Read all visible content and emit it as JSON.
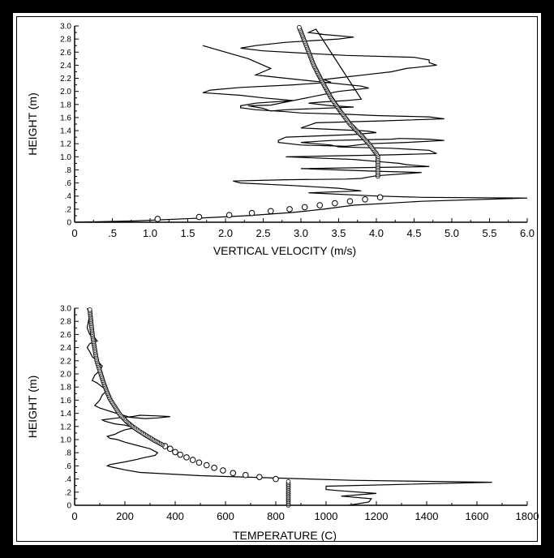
{
  "chart_data": [
    {
      "type": "line",
      "xlabel": "VERTICAL VELOCITY (m/s)",
      "ylabel": "HEIGHT (m)",
      "xlim": [
        0,
        6.0
      ],
      "ylim": [
        0,
        3.0
      ],
      "x_ticks": [
        "0",
        ".5",
        "1.0",
        "1.5",
        "2.0",
        "2.5",
        "3.0",
        "3.5",
        "4.0",
        "4.5",
        "5.0",
        "5.5",
        "6.0"
      ],
      "x_tick_values": [
        0,
        0.5,
        1.0,
        1.5,
        2.0,
        2.5,
        3.0,
        3.5,
        4.0,
        4.5,
        5.0,
        5.5,
        6.0
      ],
      "y_ticks": [
        "0",
        ".2",
        ".4",
        ".6",
        ".8",
        "1.0",
        "1.2",
        "1.4",
        "1.6",
        "1.8",
        "2.0",
        "2.2",
        "2.4",
        "2.6",
        "2.8",
        "3.0"
      ],
      "y_tick_values": [
        0,
        0.2,
        0.4,
        0.6,
        0.8,
        1.0,
        1.2,
        1.4,
        1.6,
        1.8,
        2.0,
        2.2,
        2.4,
        2.6,
        2.8,
        3.0
      ],
      "series": [
        {
          "style": "line",
          "x": [
            0.0,
            0.8,
            1.6,
            2.3,
            2.9,
            3.3,
            3.7,
            4.6,
            6.0,
            4.6,
            4.0,
            3.1,
            3.8,
            3.5,
            2.9,
            2.2,
            2.1,
            2.8,
            3.6,
            3.8,
            3.9,
            4.0,
            4.6,
            4.0,
            3.0,
            4.7,
            4.4,
            4.3,
            4.1,
            3.7,
            2.8,
            4.2,
            4.8,
            4.7,
            4.2,
            3.5,
            3.4,
            3.2,
            3.0,
            3.4,
            3.8,
            4.2,
            4.3,
            4.7,
            4.9,
            4.4,
            3.9,
            3.6,
            3.0,
            2.7,
            2.7,
            2.8,
            3.7,
            4.0,
            3.9,
            3.8,
            3.4,
            3.0,
            3.1,
            3.2,
            4.1,
            4.9,
            4.7,
            4.0,
            3.6,
            3.0,
            2.8,
            2.4,
            2.2,
            2.2,
            2.4,
            2.9,
            2.5,
            2.2,
            1.7,
            1.8,
            2.2,
            2.9,
            3.4,
            3.3,
            3.6,
            3.9,
            4.2,
            4.4,
            4.8,
            4.7,
            4.7,
            4.5,
            3.6,
            3.1,
            2.5,
            2.2,
            2.4,
            2.8,
            3.5,
            3.7,
            3.3,
            3.1,
            3.2,
            3.8,
            3.6,
            3.3,
            3.1,
            3.4,
            3.7,
            2.8,
            2.6,
            2.5,
            2.3,
            2.6,
            3.5,
            3.9,
            3.8,
            2.8,
            2.4,
            2.6,
            2.3,
            1.7
          ],
          "y": [
            0.0,
            0.02,
            0.06,
            0.1,
            0.15,
            0.2,
            0.26,
            0.32,
            0.37,
            0.38,
            0.4,
            0.45,
            0.48,
            0.52,
            0.56,
            0.6,
            0.63,
            0.65,
            0.66,
            0.67,
            0.69,
            0.71,
            0.76,
            0.78,
            0.82,
            0.85,
            0.88,
            0.9,
            0.92,
            0.96,
            1.0,
            1.03,
            1.05,
            1.1,
            1.13,
            1.15,
            1.18,
            1.2,
            1.22,
            1.25,
            1.26,
            1.27,
            1.28,
            1.27,
            1.25,
            1.22,
            1.2,
            1.16,
            1.18,
            1.22,
            1.25,
            1.3,
            1.34,
            1.37,
            1.39,
            1.4,
            1.42,
            1.44,
            1.48,
            1.52,
            1.55,
            1.58,
            1.61,
            1.63,
            1.65,
            1.67,
            1.69,
            1.72,
            1.75,
            1.78,
            1.82,
            1.86,
            1.9,
            1.94,
            1.98,
            2.02,
            2.06,
            2.1,
            2.14,
            2.18,
            2.22,
            2.26,
            2.3,
            2.35,
            2.4,
            2.44,
            2.48,
            2.52,
            2.55,
            2.58,
            2.62,
            2.66,
            2.7,
            2.75,
            2.8,
            2.83,
            2.87,
            2.9,
            2.95,
            1.88,
            1.86,
            1.84,
            1.82,
            1.78,
            1.76,
            1.72,
            1.7,
            1.74,
            1.78,
            1.79,
            2.0,
            2.05,
            2.08,
            2.2,
            2.25,
            2.35,
            2.5,
            2.7
          ],
          "raw_path": true
        },
        {
          "style": "circles",
          "x": [
            1.1,
            1.65,
            2.05,
            2.35,
            2.6,
            2.85,
            3.05,
            3.25,
            3.45,
            3.65,
            3.85,
            4.05
          ],
          "y": [
            0.05,
            0.08,
            0.11,
            0.14,
            0.17,
            0.2,
            0.23,
            0.26,
            0.29,
            0.32,
            0.35,
            0.38
          ]
        },
        {
          "style": "dense-circles",
          "x": [
            4.02,
            4.02,
            4.02,
            4.02,
            4.02,
            4.02,
            4.02,
            4.0,
            3.9,
            3.78,
            3.65,
            3.52,
            3.4,
            3.28,
            3.17,
            3.07,
            2.97
          ],
          "y": [
            0.7,
            0.75,
            0.8,
            0.85,
            0.9,
            0.95,
            1.0,
            1.05,
            1.2,
            1.35,
            1.5,
            1.7,
            1.9,
            2.15,
            2.4,
            2.7,
            3.0
          ]
        }
      ]
    },
    {
      "type": "line",
      "xlabel": "TEMPERATURE (C)",
      "ylabel": "HEIGHT (m)",
      "xlim": [
        0,
        1800
      ],
      "ylim": [
        0,
        3.0
      ],
      "x_ticks": [
        "0",
        "200",
        "400",
        "600",
        "800",
        "1000",
        "1200",
        "1400",
        "1600",
        "1800"
      ],
      "x_tick_values": [
        0,
        200,
        400,
        600,
        800,
        1000,
        1200,
        1400,
        1600,
        1800
      ],
      "y_ticks": [
        "0",
        ".2",
        ".4",
        ".6",
        ".8",
        "1.0",
        "1.2",
        "1.4",
        "1.6",
        "1.8",
        "2.0",
        "2.2",
        "2.4",
        "2.6",
        "2.8",
        "3.0"
      ],
      "y_tick_values": [
        0,
        0.2,
        0.4,
        0.6,
        0.8,
        1.0,
        1.2,
        1.4,
        1.6,
        1.8,
        2.0,
        2.2,
        2.4,
        2.6,
        2.8,
        3.0
      ],
      "series": [
        {
          "style": "line",
          "x": [
            1090,
            1170,
            1180,
            1060,
            1200,
            1060,
            1000,
            1000,
            1660,
            1100,
            500,
            260,
            200,
            150,
            130,
            140,
            200,
            250,
            270,
            320,
            330,
            300,
            280,
            240,
            200,
            170,
            140,
            130,
            160,
            180,
            200,
            240,
            200,
            160,
            120,
            110,
            170,
            230,
            260,
            330,
            380,
            330,
            280,
            220,
            150,
            100,
            80,
            100,
            110,
            130,
            110,
            90,
            70,
            80,
            100,
            110,
            90,
            70,
            60,
            50,
            60,
            90,
            80,
            60,
            50,
            55,
            60,
            50
          ],
          "y": [
            0.0,
            0.05,
            0.1,
            0.14,
            0.18,
            0.22,
            0.24,
            0.29,
            0.35,
            0.38,
            0.45,
            0.5,
            0.54,
            0.58,
            0.6,
            0.62,
            0.66,
            0.7,
            0.72,
            0.76,
            0.8,
            0.86,
            0.88,
            0.92,
            0.96,
            1.0,
            1.02,
            1.05,
            1.08,
            1.12,
            1.15,
            1.18,
            1.22,
            1.24,
            1.28,
            1.3,
            1.33,
            1.35,
            1.37,
            1.36,
            1.35,
            1.33,
            1.32,
            1.34,
            1.42,
            1.48,
            1.52,
            1.6,
            1.68,
            1.75,
            1.8,
            1.86,
            1.9,
            1.98,
            2.05,
            2.12,
            2.2,
            2.26,
            2.34,
            2.4,
            2.46,
            2.5,
            2.55,
            2.6,
            2.7,
            2.8,
            2.9,
            3.0
          ],
          "raw_path": true
        },
        {
          "style": "circles",
          "x": [
            800,
            735,
            680,
            630,
            590,
            555,
            525,
            495,
            470,
            445,
            420,
            400,
            380,
            360
          ],
          "y": [
            0.4,
            0.43,
            0.46,
            0.49,
            0.53,
            0.57,
            0.61,
            0.65,
            0.69,
            0.73,
            0.77,
            0.81,
            0.86,
            0.9
          ]
        },
        {
          "style": "dense-circles",
          "x": [
            850,
            850,
            850,
            850,
            850,
            850,
            850,
            350,
            320,
            290,
            260,
            230,
            205,
            180,
            160,
            140,
            125,
            112,
            100,
            88,
            80,
            72,
            66,
            60
          ],
          "y": [
            0.0,
            0.06,
            0.12,
            0.18,
            0.24,
            0.3,
            0.38,
            0.92,
            0.98,
            1.05,
            1.12,
            1.2,
            1.28,
            1.38,
            1.5,
            1.62,
            1.76,
            1.9,
            2.05,
            2.2,
            2.38,
            2.56,
            2.76,
            3.0
          ]
        }
      ]
    }
  ]
}
